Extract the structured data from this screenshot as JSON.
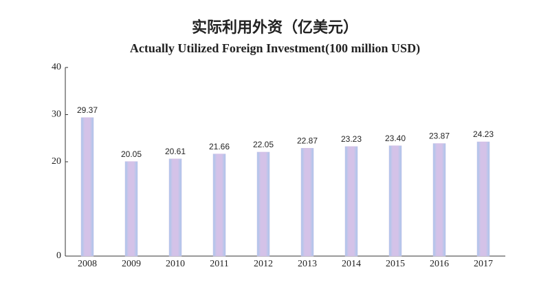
{
  "chart_data": {
    "type": "bar",
    "title": "实际利用外资（亿美元）",
    "subtitle": "Actually Utilized Foreign Investment(100 million USD)",
    "categories": [
      "2008",
      "2009",
      "2010",
      "2011",
      "2012",
      "2013",
      "2014",
      "2015",
      "2016",
      "2017"
    ],
    "values": [
      29.37,
      20.05,
      20.61,
      21.66,
      22.05,
      22.87,
      23.23,
      23.4,
      23.87,
      24.23
    ],
    "value_labels": [
      "29.37",
      "20.05",
      "20.61",
      "21.66",
      "22.05",
      "22.87",
      "23.23",
      "23.40",
      "23.87",
      "24.23"
    ],
    "color": "#cdbbe4",
    "ylim": [
      0,
      40
    ],
    "yticks": [
      0,
      20,
      30,
      40
    ],
    "grid": false
  }
}
